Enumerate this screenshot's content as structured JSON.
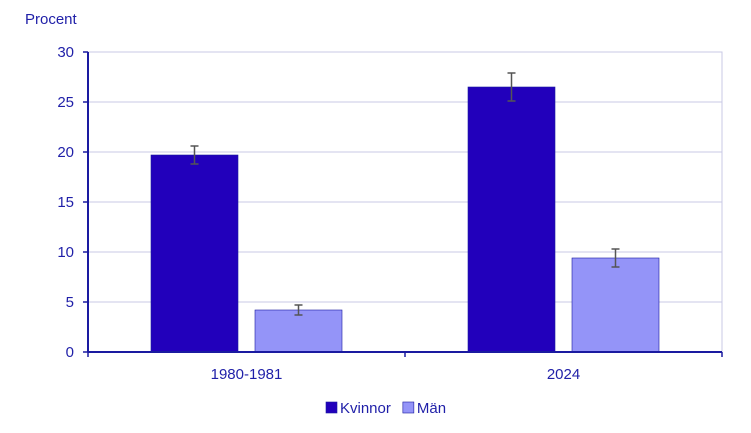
{
  "chart_data": {
    "type": "bar",
    "ylabel": "Procent",
    "ylim": [
      0,
      30
    ],
    "yticks": [
      0,
      5,
      10,
      15,
      20,
      25,
      30
    ],
    "categories": [
      "1980-1981",
      "2024"
    ],
    "series": [
      {
        "name": "Kvinnor",
        "color": "#2200bb",
        "values": [
          19.7,
          26.5
        ],
        "error_low": [
          18.8,
          25.1
        ],
        "error_high": [
          20.6,
          27.9
        ]
      },
      {
        "name": "Män",
        "color": "#9494f8",
        "values": [
          4.2,
          9.4
        ],
        "error_low": [
          3.7,
          8.5
        ],
        "error_high": [
          4.7,
          10.3
        ]
      }
    ],
    "grid": "horizontal",
    "legend_position": "bottom-center"
  }
}
